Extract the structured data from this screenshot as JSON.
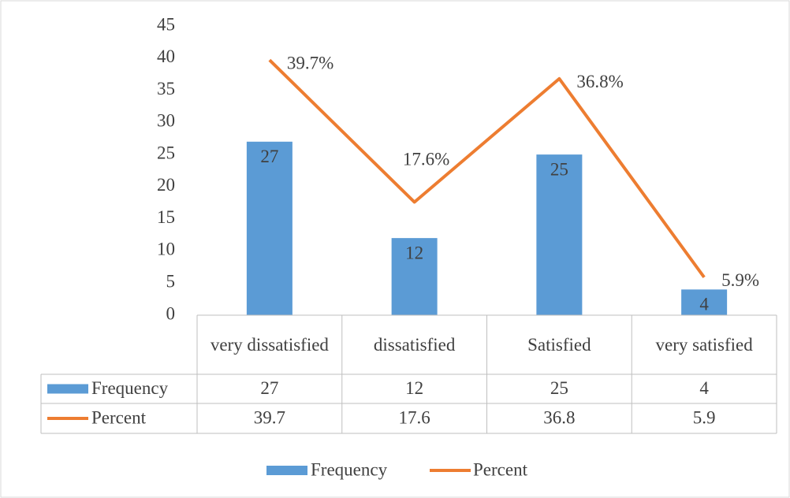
{
  "chart_data": {
    "type": "bar-line",
    "categories": [
      "very dissatisfied",
      "dissatisfied",
      "Satisfied",
      "very satisfied"
    ],
    "series": [
      {
        "name": "Frequency",
        "type": "bar",
        "color": "#5b9bd5",
        "values": [
          27,
          12,
          25,
          4
        ]
      },
      {
        "name": "Percent",
        "type": "line",
        "color": "#ed7d31",
        "values": [
          39.7,
          17.6,
          36.8,
          5.9
        ],
        "value_labels": [
          "39.7%",
          "17.6%",
          "36.8%",
          "5.9%"
        ]
      }
    ],
    "ylim": [
      0,
      45
    ],
    "yticks": [
      0,
      5,
      10,
      15,
      20,
      25,
      30,
      35,
      40,
      45
    ],
    "grid": false,
    "data_table": true,
    "legend": "bottom"
  }
}
